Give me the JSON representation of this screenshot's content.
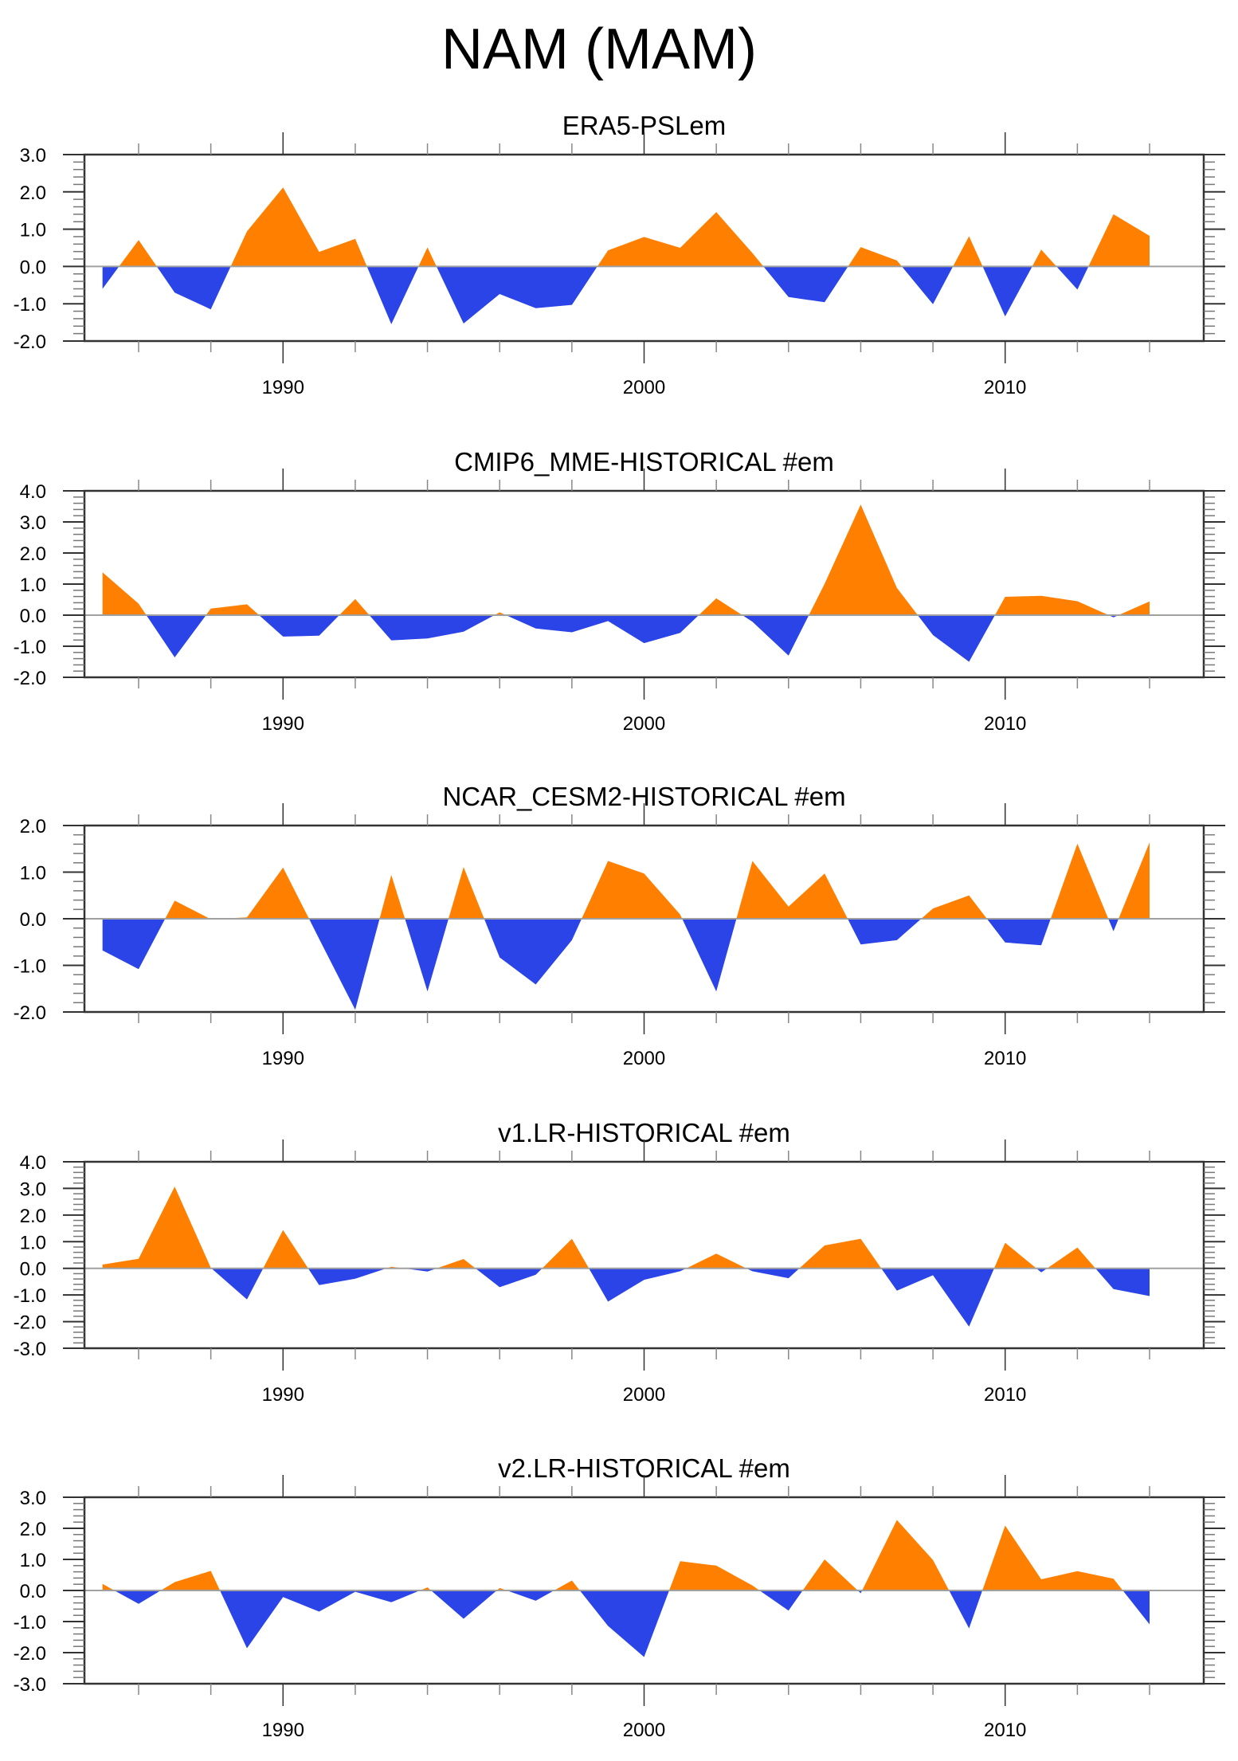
{
  "chart_data": {
    "title": "NAM (MAM)",
    "type": "area",
    "x_label": "",
    "x_range": [
      1984.5,
      2015.5
    ],
    "x_major_ticks": [
      1990,
      2000,
      2010
    ],
    "x_minor_tick_step": 2,
    "positive_color": "#ff8000",
    "negative_color": "#2a44e8",
    "zero_line": true,
    "grid": false,
    "years": [
      1985,
      1986,
      1987,
      1988,
      1989,
      1990,
      1991,
      1992,
      1993,
      1994,
      1995,
      1996,
      1997,
      1998,
      1999,
      2000,
      2001,
      2002,
      2003,
      2004,
      2005,
      2006,
      2007,
      2008,
      2009,
      2010,
      2011,
      2012,
      2013,
      2014
    ],
    "panels": [
      {
        "title": "ERA5-PSLem",
        "ylim": [
          -2,
          3
        ],
        "yticks": [
          "3.0",
          "2.0",
          "1.0",
          "0.0",
          "-1.0",
          "-2.0"
        ],
        "ytick_values": [
          3,
          2,
          1,
          0,
          -1,
          -2
        ],
        "values": [
          -0.6,
          0.71,
          -0.7,
          -1.15,
          0.94,
          2.12,
          0.39,
          0.74,
          -1.55,
          0.51,
          -1.53,
          -0.74,
          -1.12,
          -1.03,
          0.43,
          0.79,
          0.5,
          1.46,
          0.36,
          -0.82,
          -0.96,
          0.52,
          0.16,
          -1.01,
          0.81,
          -1.34,
          0.45,
          -0.62,
          1.4,
          0.82
        ]
      },
      {
        "title": "CMIP6_MME-HISTORICAL  #em",
        "ylim": [
          -2,
          4
        ],
        "yticks": [
          "4.0",
          "3.0",
          "2.0",
          "1.0",
          "0.0",
          "-1.0",
          "-2.0"
        ],
        "ytick_values": [
          4,
          3,
          2,
          1,
          0,
          -1,
          -2
        ],
        "values": [
          1.38,
          0.37,
          -1.36,
          0.21,
          0.35,
          -0.69,
          -0.66,
          0.52,
          -0.81,
          -0.75,
          -0.53,
          0.09,
          -0.43,
          -0.55,
          -0.19,
          -0.9,
          -0.57,
          0.54,
          -0.21,
          -1.3,
          1.01,
          3.56,
          0.88,
          -0.64,
          -1.5,
          0.59,
          0.62,
          0.45,
          -0.07,
          0.44
        ]
      },
      {
        "title": "NCAR_CESM2-HISTORICAL  #em",
        "ylim": [
          -2,
          2
        ],
        "yticks": [
          "2.0",
          "1.0",
          "0.0",
          "-1.0",
          "-2.0"
        ],
        "ytick_values": [
          2,
          1,
          0,
          -1,
          -2
        ],
        "values": [
          -0.68,
          -1.08,
          0.39,
          -0.01,
          0.03,
          1.1,
          -0.43,
          -1.95,
          0.94,
          -1.56,
          1.11,
          -0.83,
          -1.41,
          -0.46,
          1.24,
          0.97,
          0.09,
          -1.56,
          1.24,
          0.26,
          0.97,
          -0.55,
          -0.46,
          0.22,
          0.5,
          -0.51,
          -0.57,
          1.61,
          -0.27,
          1.64
        ]
      },
      {
        "title": "v1.LR-HISTORICAL  #em",
        "ylim": [
          -3,
          4
        ],
        "yticks": [
          "4.0",
          "3.0",
          "2.0",
          "1.0",
          "0.0",
          "-1.0",
          "-2.0",
          "-3.0"
        ],
        "ytick_values": [
          4,
          3,
          2,
          1,
          0,
          -1,
          -2,
          -3
        ],
        "values": [
          0.14,
          0.36,
          3.07,
          0.02,
          -1.17,
          1.44,
          -0.63,
          -0.39,
          0.06,
          -0.12,
          0.35,
          -0.71,
          -0.24,
          1.11,
          -1.25,
          -0.43,
          -0.11,
          0.55,
          -0.11,
          -0.37,
          0.86,
          1.11,
          -0.84,
          -0.26,
          -2.19,
          0.96,
          -0.15,
          0.78,
          -0.78,
          -1.04
        ]
      },
      {
        "title": "v2.LR-HISTORICAL  #em",
        "ylim": [
          -3,
          3
        ],
        "yticks": [
          "3.0",
          "2.0",
          "1.0",
          "0.0",
          "-1.0",
          "-2.0",
          "-3.0"
        ],
        "ytick_values": [
          3,
          2,
          1,
          0,
          -1,
          -2,
          -3
        ],
        "values": [
          0.21,
          -0.43,
          0.27,
          0.63,
          -1.86,
          -0.21,
          -0.68,
          -0.04,
          -0.38,
          0.1,
          -0.91,
          0.08,
          -0.33,
          0.32,
          -1.14,
          -2.14,
          0.94,
          0.8,
          0.16,
          -0.65,
          1.0,
          -0.09,
          2.27,
          0.98,
          -1.22,
          2.09,
          0.36,
          0.62,
          0.38,
          -1.09
        ]
      }
    ]
  }
}
